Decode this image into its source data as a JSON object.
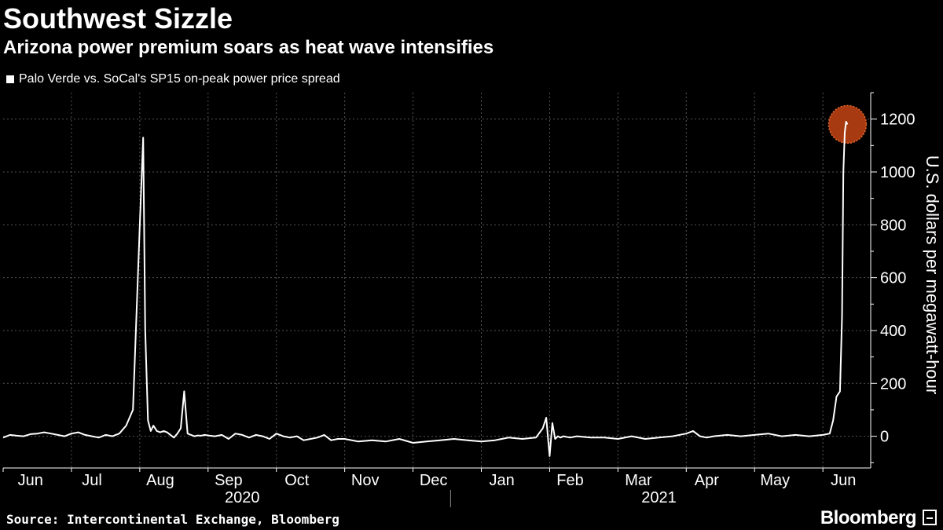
{
  "header": {
    "title": "Southwest Sizzle",
    "subtitle": "Arizona power premium soars as heat wave intensifies"
  },
  "footer": {
    "source": "Source: Intercontinental Exchange, Bloomberg",
    "brand": "Bloomberg"
  },
  "chart_data": {
    "type": "line",
    "title": "Southwest Sizzle",
    "subtitle": "Arizona power premium soars as heat wave intensifies",
    "legend": [
      "Palo Verde vs. SoCal's SP15 on-peak power price spread"
    ],
    "legend_position": "top-left",
    "xlabel": "",
    "ylabel": "U.S. dollars per megawatt-hour",
    "ylim": [
      -120,
      1300
    ],
    "yticks": [
      0,
      200,
      400,
      600,
      800,
      1000,
      1200
    ],
    "grid": true,
    "x_unit": "months since Jun 1, 2020",
    "xlim": [
      0,
      12.7
    ],
    "month_labels": [
      {
        "label": "Jun",
        "x": 0.1
      },
      {
        "label": "Jul",
        "x": 1
      },
      {
        "label": "Aug",
        "x": 2
      },
      {
        "label": "Sep",
        "x": 3
      },
      {
        "label": "Oct",
        "x": 4
      },
      {
        "label": "Nov",
        "x": 5
      },
      {
        "label": "Dec",
        "x": 6
      },
      {
        "label": "Jan",
        "x": 7
      },
      {
        "label": "Feb",
        "x": 8
      },
      {
        "label": "Mar",
        "x": 9
      },
      {
        "label": "Apr",
        "x": 10
      },
      {
        "label": "May",
        "x": 11
      },
      {
        "label": "Jun",
        "x": 12
      }
    ],
    "year_labels": [
      {
        "label": "2020",
        "x": 3.5
      },
      {
        "label": "2021",
        "x": 9.6
      }
    ],
    "year_divider_x": 6.55,
    "highlight_point": {
      "x": 12.36,
      "y": 1180
    },
    "series": [
      {
        "name": "Palo Verde vs. SoCal's SP15 on-peak power price spread",
        "color": "#ffffff",
        "x": [
          0,
          0.1,
          0.2,
          0.3,
          0.4,
          0.5,
          0.6,
          0.7,
          0.8,
          0.9,
          1.0,
          1.1,
          1.2,
          1.3,
          1.4,
          1.5,
          1.6,
          1.7,
          1.8,
          1.9,
          2.0,
          2.05,
          2.08,
          2.12,
          2.16,
          2.2,
          2.25,
          2.3,
          2.35,
          2.4,
          2.5,
          2.55,
          2.6,
          2.65,
          2.7,
          2.75,
          2.8,
          2.85,
          2.9,
          2.95,
          3.0,
          3.1,
          3.2,
          3.3,
          3.4,
          3.5,
          3.6,
          3.7,
          3.8,
          3.9,
          4.0,
          4.1,
          4.2,
          4.3,
          4.4,
          4.5,
          4.6,
          4.7,
          4.8,
          4.9,
          5.0,
          5.2,
          5.4,
          5.6,
          5.8,
          6.0,
          6.2,
          6.4,
          6.6,
          6.8,
          7.0,
          7.2,
          7.4,
          7.6,
          7.8,
          7.9,
          7.95,
          8.0,
          8.04,
          8.08,
          8.12,
          8.16,
          8.2,
          8.3,
          8.4,
          8.6,
          8.8,
          9.0,
          9.2,
          9.4,
          9.6,
          9.8,
          10.0,
          10.1,
          10.2,
          10.3,
          10.4,
          10.6,
          10.8,
          11.0,
          11.2,
          11.4,
          11.6,
          11.8,
          12.0,
          12.1,
          12.15,
          12.2,
          12.25,
          12.28,
          12.3,
          12.32,
          12.34,
          12.36
        ],
        "values": [
          -5,
          5,
          2,
          0,
          8,
          10,
          15,
          10,
          5,
          0,
          10,
          15,
          5,
          0,
          -5,
          5,
          0,
          10,
          40,
          100,
          800,
          1130,
          400,
          60,
          20,
          40,
          20,
          15,
          20,
          15,
          -5,
          10,
          30,
          170,
          10,
          5,
          0,
          3,
          2,
          5,
          3,
          0,
          5,
          -10,
          10,
          5,
          -5,
          5,
          0,
          -10,
          10,
          0,
          -5,
          0,
          -15,
          -10,
          -5,
          5,
          -15,
          -10,
          -10,
          -20,
          -15,
          -20,
          -10,
          -25,
          -20,
          -15,
          -10,
          -15,
          -20,
          -15,
          -5,
          -10,
          -5,
          30,
          70,
          -75,
          50,
          -10,
          0,
          -5,
          0,
          -5,
          0,
          -5,
          -5,
          -10,
          0,
          -10,
          -5,
          0,
          10,
          20,
          0,
          -5,
          0,
          5,
          0,
          5,
          10,
          0,
          5,
          0,
          5,
          10,
          60,
          150,
          170,
          450,
          1000,
          1150,
          1190,
          1180
        ]
      }
    ]
  }
}
